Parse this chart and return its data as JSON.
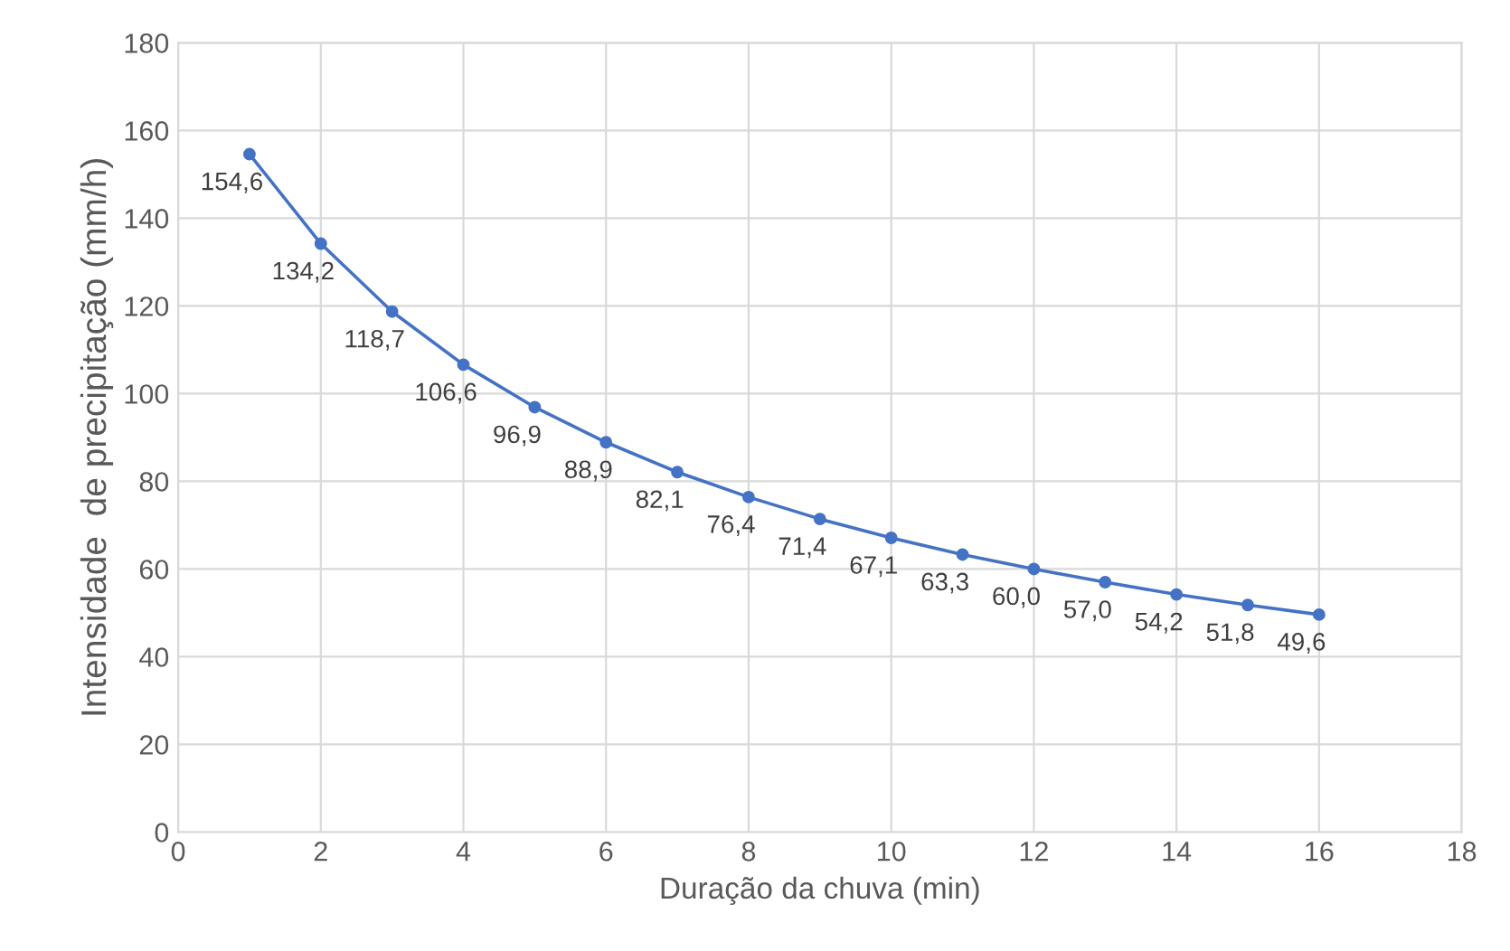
{
  "chart_data": {
    "type": "line",
    "xlabel": "Duração da chuva (min)",
    "ylabel": "Intensidade  de precipitação (mm/h)",
    "x": [
      1,
      2,
      3,
      4,
      5,
      6,
      7,
      8,
      9,
      10,
      11,
      12,
      13,
      14,
      15,
      16
    ],
    "series": [
      {
        "color": "#4472c4",
        "values": [
          154.6,
          134.2,
          118.7,
          106.6,
          96.9,
          88.9,
          82.1,
          76.4,
          71.4,
          67.1,
          63.3,
          60.0,
          57.0,
          54.2,
          51.8,
          49.6
        ],
        "value_labels": [
          "154,6",
          "134,2",
          "118,7",
          "106,6",
          "96,9",
          "88,9",
          "82,1",
          "76,4",
          "71,4",
          "67,1",
          "63,3",
          "60,0",
          "57,0",
          "54,2",
          "51,8",
          "49,6"
        ]
      }
    ],
    "xlim": [
      0,
      18
    ],
    "xticks": [
      0,
      2,
      4,
      6,
      8,
      10,
      12,
      14,
      16,
      18
    ],
    "ylim": [
      0,
      180
    ],
    "yticks": [
      0,
      20,
      40,
      60,
      80,
      100,
      120,
      140,
      160,
      180
    ],
    "grid": true,
    "marker": "circle",
    "line_style": "solid"
  }
}
